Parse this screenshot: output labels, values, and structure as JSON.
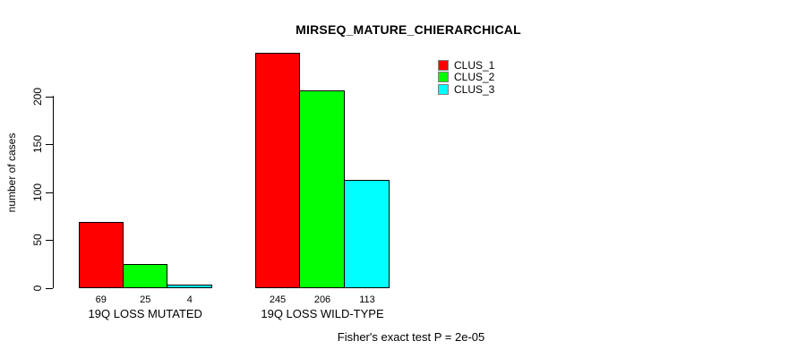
{
  "chart_data": {
    "type": "bar",
    "title": "MIRSEQ_MATURE_CHIERARCHICAL",
    "xlabel": "",
    "ylabel": "number of cases",
    "categories": [
      "19Q LOSS MUTATED",
      "19Q LOSS WILD-TYPE"
    ],
    "series": [
      {
        "name": "CLUS_1",
        "color": "#FF0000",
        "values": [
          69,
          245
        ]
      },
      {
        "name": "CLUS_2",
        "color": "#00FF00",
        "values": [
          25,
          206
        ]
      },
      {
        "name": "CLUS_3",
        "color": "#00FFFF",
        "values": [
          4,
          113
        ]
      }
    ],
    "yticks": [
      0,
      50,
      100,
      150,
      200
    ],
    "ylim": [
      0,
      200
    ],
    "grid": false,
    "bar_borders": "#000000",
    "legend_position": "top-right",
    "bar_value_labels_shown": true,
    "annotation": "Fisher's exact test P = 2e-05"
  }
}
